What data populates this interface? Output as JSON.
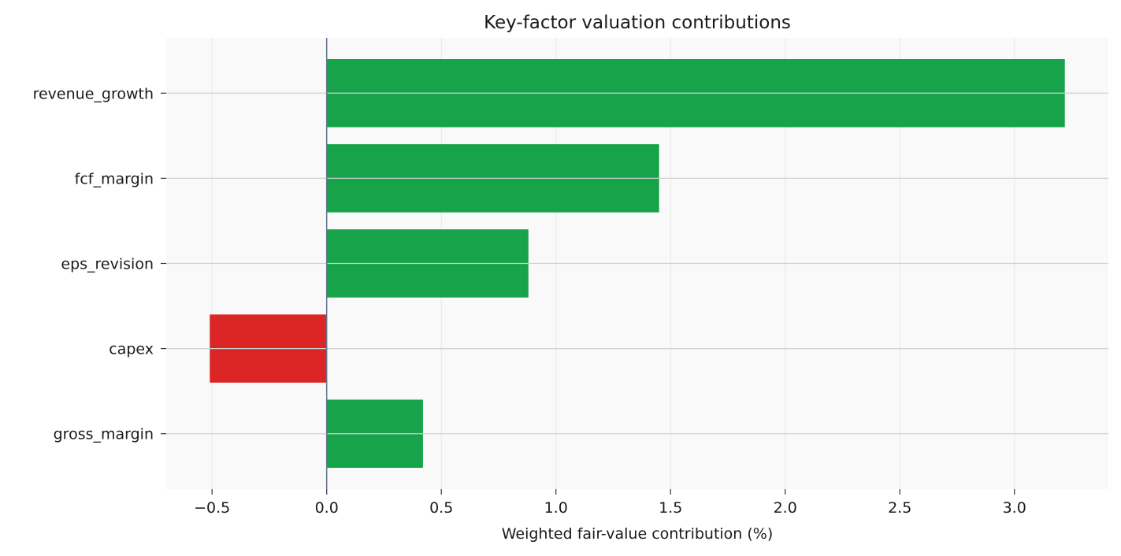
{
  "chart_data": {
    "type": "bar",
    "orientation": "horizontal",
    "title": "Key-factor valuation contributions",
    "xlabel": "Weighted fair-value contribution (%)",
    "ylabel": "",
    "categories": [
      "revenue_growth",
      "fcf_margin",
      "eps_revision",
      "capex",
      "gross_margin"
    ],
    "values": [
      3.22,
      1.45,
      0.88,
      -0.51,
      0.42
    ],
    "xlim": [
      -0.7,
      3.41
    ],
    "xticks": [
      -0.5,
      0.0,
      0.5,
      1.0,
      1.5,
      2.0,
      2.5,
      3.0
    ],
    "xtick_labels": [
      "−0.5",
      "0.0",
      "0.5",
      "1.0",
      "1.5",
      "2.0",
      "2.5",
      "3.0"
    ],
    "grid": true,
    "colors": {
      "positive": "#16a34a",
      "negative": "#dc2626",
      "zero_line": "#64748b",
      "grid": "#d0d0d0",
      "plot_background": "#f9f9f9"
    }
  }
}
